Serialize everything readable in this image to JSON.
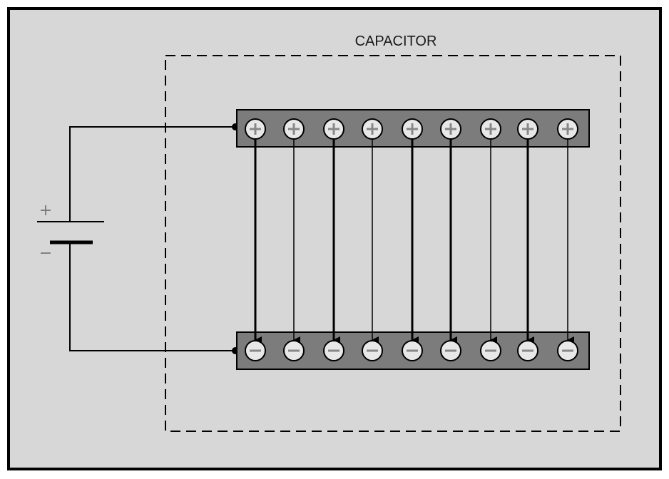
{
  "diagram": {
    "title": "CAPACITOR",
    "battery": {
      "positive_sign": "+",
      "negative_sign": "−"
    },
    "plates": {
      "top": {
        "charge_symbol": "+",
        "charge_count": 9
      },
      "bottom": {
        "charge_symbol": "−",
        "charge_count": 9
      }
    },
    "field_lines": {
      "count": 9,
      "direction": "downward",
      "weights": [
        "heavy",
        "light",
        "heavy",
        "light",
        "heavy",
        "heavy",
        "light",
        "heavy",
        "light"
      ]
    },
    "colors": {
      "background": "#d7d7d7",
      "frame": "#000000",
      "plate": "#7c7c7c",
      "charge_fill": "#e8e8e8",
      "charge_sign": "#888888",
      "wire": "#000000"
    }
  }
}
